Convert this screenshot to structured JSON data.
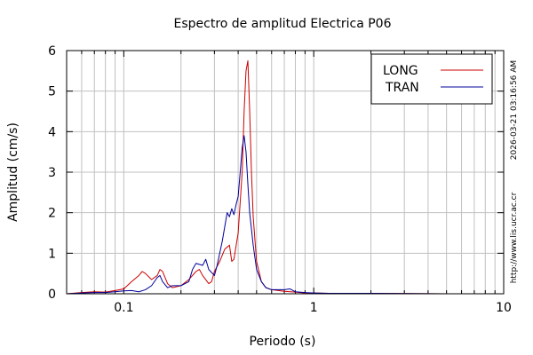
{
  "chart_data": {
    "type": "line",
    "title": "Espectro de amplitud Electrica P06",
    "xlabel": "Periodo (s)",
    "ylabel": "Amplitud (cm/s)",
    "x_scale": "log",
    "xlim": [
      0.05,
      10
    ],
    "ylim": [
      0,
      6
    ],
    "x_ticks": [
      0.1,
      1,
      10
    ],
    "x_tick_labels": [
      "0.1",
      "1",
      "10"
    ],
    "y_ticks": [
      0,
      1,
      2,
      3,
      4,
      5,
      6
    ],
    "y_tick_labels": [
      "0",
      "1",
      "2",
      "3",
      "4",
      "5",
      "6"
    ],
    "grid": true,
    "legend_position": "top-right",
    "side_text_top": "2026-03-21 03:16:56 AM",
    "side_text_bottom": "http://www.lis.ucr.ac.cr",
    "series": [
      {
        "name": "LONG",
        "color": "#cc0000",
        "x": [
          0.05,
          0.06,
          0.07,
          0.08,
          0.09,
          0.1,
          0.11,
          0.12,
          0.125,
          0.13,
          0.14,
          0.15,
          0.155,
          0.16,
          0.17,
          0.18,
          0.2,
          0.22,
          0.24,
          0.25,
          0.26,
          0.28,
          0.29,
          0.3,
          0.32,
          0.34,
          0.36,
          0.37,
          0.38,
          0.4,
          0.42,
          0.43,
          0.44,
          0.45,
          0.46,
          0.47,
          0.48,
          0.5,
          0.53,
          0.56,
          0.6,
          0.7,
          0.8,
          0.9,
          1.0,
          1.2,
          2.0,
          5.0,
          10.0
        ],
        "y": [
          0.0,
          0.03,
          0.05,
          0.04,
          0.08,
          0.12,
          0.3,
          0.45,
          0.55,
          0.5,
          0.35,
          0.45,
          0.6,
          0.55,
          0.25,
          0.15,
          0.2,
          0.35,
          0.55,
          0.6,
          0.45,
          0.25,
          0.3,
          0.55,
          0.8,
          1.1,
          1.2,
          0.8,
          0.85,
          1.5,
          3.0,
          4.5,
          5.5,
          5.75,
          4.5,
          3.0,
          1.9,
          0.8,
          0.3,
          0.15,
          0.1,
          0.06,
          0.04,
          0.02,
          0.02,
          0.01,
          0.01,
          0.0,
          0.0
        ]
      },
      {
        "name": "TRAN",
        "color": "#000099",
        "x": [
          0.05,
          0.06,
          0.07,
          0.08,
          0.09,
          0.1,
          0.11,
          0.12,
          0.13,
          0.14,
          0.15,
          0.155,
          0.16,
          0.17,
          0.18,
          0.2,
          0.22,
          0.23,
          0.24,
          0.26,
          0.27,
          0.28,
          0.3,
          0.31,
          0.33,
          0.35,
          0.36,
          0.37,
          0.38,
          0.39,
          0.4,
          0.41,
          0.42,
          0.43,
          0.44,
          0.45,
          0.46,
          0.48,
          0.5,
          0.53,
          0.56,
          0.6,
          0.7,
          0.75,
          0.8,
          0.9,
          1.0,
          1.2,
          2.0,
          5.0,
          10.0
        ],
        "y": [
          0.0,
          0.02,
          0.03,
          0.03,
          0.05,
          0.07,
          0.08,
          0.05,
          0.1,
          0.2,
          0.4,
          0.45,
          0.3,
          0.15,
          0.2,
          0.2,
          0.3,
          0.6,
          0.75,
          0.7,
          0.85,
          0.6,
          0.45,
          0.7,
          1.3,
          2.0,
          1.9,
          2.1,
          1.95,
          2.2,
          2.4,
          3.0,
          3.6,
          3.9,
          3.5,
          2.7,
          2.0,
          1.2,
          0.6,
          0.3,
          0.15,
          0.1,
          0.1,
          0.12,
          0.05,
          0.03,
          0.02,
          0.01,
          0.01,
          0.0,
          0.0
        ]
      }
    ]
  }
}
